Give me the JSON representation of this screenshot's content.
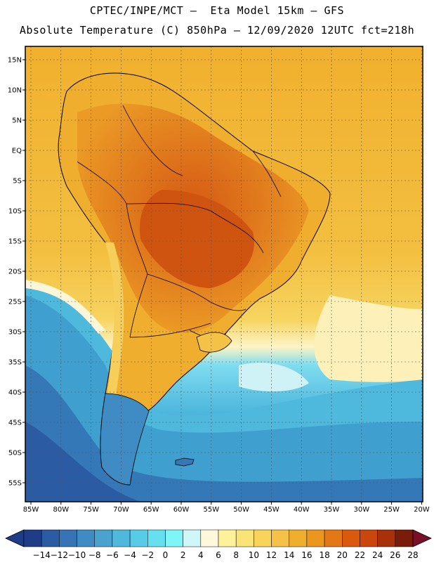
{
  "header": {
    "line1": "CPTEC/INPE/MCT –  Eta Model 15km – GFS",
    "line2": "Absolute Temperature (C) 850hPa – 12/09/2020 12UTC fct=218h"
  },
  "axes": {
    "lat_labels": [
      "15N",
      "10N",
      "5N",
      "EQ",
      "5S",
      "10S",
      "15S",
      "20S",
      "25S",
      "30S",
      "35S",
      "40S",
      "45S",
      "50S",
      "55S"
    ],
    "lon_labels": [
      "85W",
      "80W",
      "75W",
      "70W",
      "65W",
      "60W",
      "55W",
      "50W",
      "45W",
      "40W",
      "35W",
      "30W",
      "25W",
      "20W"
    ]
  },
  "colorbar": {
    "tick_labels": [
      "-14",
      "-12",
      "-10",
      "-8",
      "-6",
      "-4",
      "-2",
      "0",
      "2",
      "4",
      "6",
      "8",
      "10",
      "12",
      "14",
      "16",
      "18",
      "20",
      "22",
      "24",
      "26",
      "28"
    ],
    "colors": [
      "#1f3c88",
      "#2a5ba3",
      "#3774b5",
      "#3f8cc4",
      "#4aa3cf",
      "#4fb8dd",
      "#58cbe6",
      "#66e0ef",
      "#7ff5f7",
      "#cff6f9",
      "#fff8dc",
      "#fdf29a",
      "#fbe476",
      "#f8d45c",
      "#f4c247",
      "#f0ae2e",
      "#eb961f",
      "#e47716",
      "#d95a0f",
      "#c9460c",
      "#a8300b",
      "#7a1c0a"
    ]
  }
}
